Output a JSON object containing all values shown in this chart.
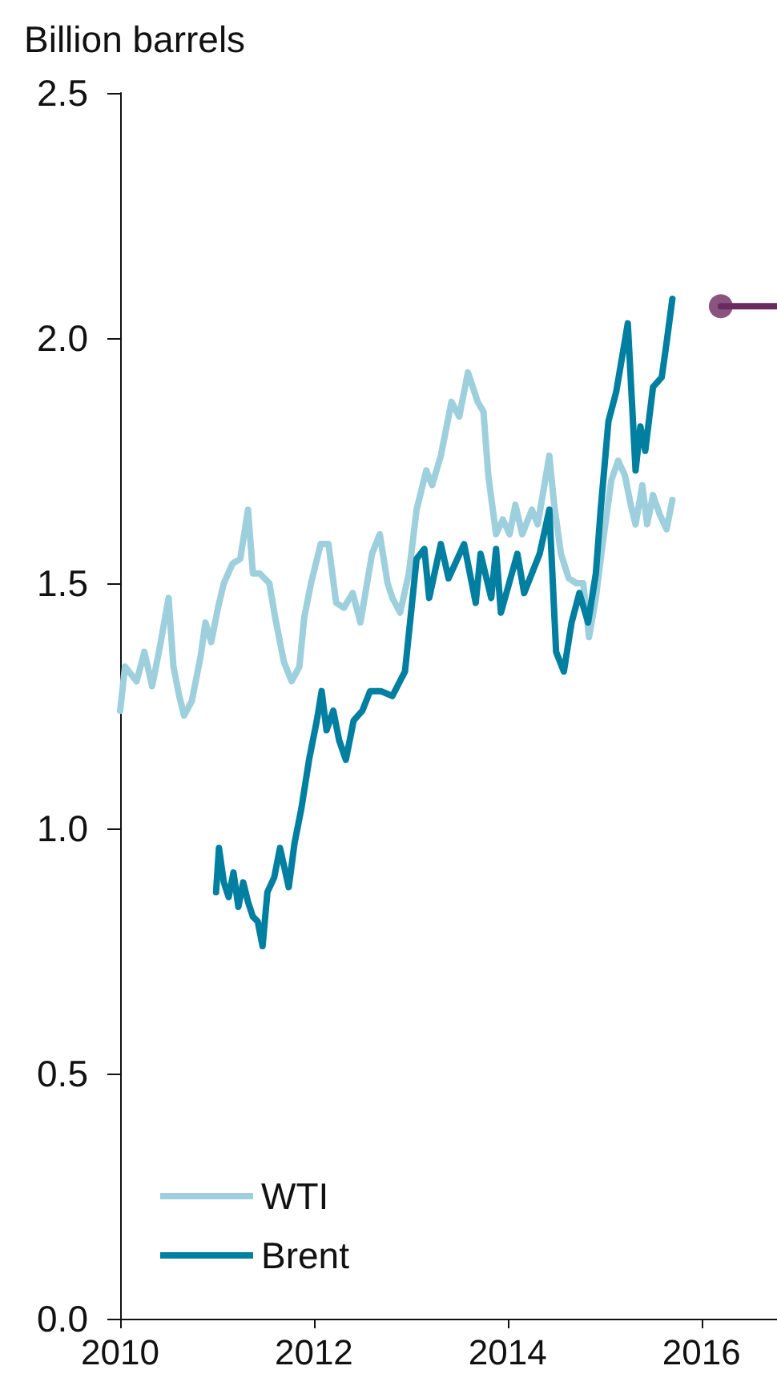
{
  "chart_data": {
    "type": "line",
    "ylabel": "Billion barrels",
    "xlim": [
      2010,
      2016.78
    ],
    "xticks": [
      2010,
      2012,
      2014,
      2016
    ],
    "ylim": [
      0,
      2.5
    ],
    "yticks": [
      {
        "value": 0,
        "label": "0.0"
      },
      0.5,
      {
        "value": 1,
        "label": "1.0"
      },
      1.5,
      {
        "value": 2,
        "label": "2.0"
      },
      2.5
    ],
    "grid": false,
    "legend": "bottom left",
    "marker": "none",
    "line_style": "solid",
    "series": [
      {
        "name": "WTI",
        "color": "#9dcfdd",
        "x": [
          2010.0,
          2010.05,
          2010.17,
          2010.25,
          2010.33,
          2010.41,
          2010.5,
          2010.55,
          2010.61,
          2010.66,
          2010.74,
          2010.83,
          2010.88,
          2010.94,
          2011.01,
          2011.07,
          2011.16,
          2011.24,
          2011.32,
          2011.37,
          2011.44,
          2011.54,
          2011.6,
          2011.69,
          2011.77,
          2011.85,
          2011.9,
          2011.97,
          2012.07,
          2012.15,
          2012.23,
          2012.31,
          2012.4,
          2012.48,
          2012.6,
          2012.68,
          2012.76,
          2012.81,
          2012.89,
          2012.98,
          2013.06,
          2013.16,
          2013.22,
          2013.31,
          2013.42,
          2013.5,
          2013.59,
          2013.69,
          2013.75,
          2013.8,
          2013.88,
          2013.95,
          2014.02,
          2014.08,
          2014.15,
          2014.25,
          2014.31,
          2014.43,
          2014.48,
          2014.55,
          2014.63,
          2014.71,
          2014.78,
          2014.84,
          2014.91,
          2014.98,
          2015.07,
          2015.14,
          2015.21,
          2015.27,
          2015.32,
          2015.39,
          2015.44,
          2015.5,
          2015.57,
          2015.64,
          2015.7
        ],
        "values": [
          1.24,
          1.33,
          1.3,
          1.36,
          1.29,
          1.37,
          1.47,
          1.33,
          1.27,
          1.23,
          1.26,
          1.35,
          1.42,
          1.38,
          1.45,
          1.5,
          1.54,
          1.55,
          1.65,
          1.52,
          1.52,
          1.5,
          1.43,
          1.34,
          1.3,
          1.33,
          1.43,
          1.5,
          1.58,
          1.58,
          1.46,
          1.45,
          1.48,
          1.42,
          1.56,
          1.6,
          1.5,
          1.47,
          1.44,
          1.52,
          1.65,
          1.73,
          1.7,
          1.76,
          1.87,
          1.84,
          1.93,
          1.87,
          1.85,
          1.72,
          1.6,
          1.63,
          1.6,
          1.66,
          1.6,
          1.65,
          1.62,
          1.76,
          1.66,
          1.56,
          1.51,
          1.5,
          1.5,
          1.39,
          1.47,
          1.58,
          1.71,
          1.75,
          1.72,
          1.66,
          1.62,
          1.7,
          1.62,
          1.68,
          1.64,
          1.61,
          1.67
        ]
      },
      {
        "name": "Brent",
        "color": "#007fa0",
        "x": [
          2010.99,
          2011.02,
          2011.07,
          2011.12,
          2011.17,
          2011.22,
          2011.27,
          2011.32,
          2011.37,
          2011.42,
          2011.47,
          2011.52,
          2011.59,
          2011.65,
          2011.74,
          2011.8,
          2011.87,
          2011.95,
          2012.03,
          2012.08,
          2012.13,
          2012.2,
          2012.26,
          2012.33,
          2012.41,
          2012.5,
          2012.58,
          2012.69,
          2012.81,
          2012.94,
          2013.06,
          2013.14,
          2013.19,
          2013.31,
          2013.39,
          2013.55,
          2013.67,
          2013.72,
          2013.83,
          2013.88,
          2013.93,
          2014.1,
          2014.17,
          2014.33,
          2014.43,
          2014.5,
          2014.58,
          2014.66,
          2014.74,
          2014.83,
          2014.91,
          2014.96,
          2015.04,
          2015.12,
          2015.24,
          2015.32,
          2015.37,
          2015.42,
          2015.5,
          2015.59,
          2015.64,
          2015.7
        ],
        "values": [
          0.87,
          0.96,
          0.89,
          0.86,
          0.91,
          0.84,
          0.89,
          0.85,
          0.82,
          0.81,
          0.76,
          0.87,
          0.9,
          0.96,
          0.88,
          0.97,
          1.04,
          1.14,
          1.22,
          1.28,
          1.2,
          1.24,
          1.18,
          1.14,
          1.22,
          1.24,
          1.28,
          1.28,
          1.27,
          1.32,
          1.55,
          1.57,
          1.47,
          1.58,
          1.51,
          1.58,
          1.46,
          1.56,
          1.47,
          1.57,
          1.44,
          1.56,
          1.48,
          1.56,
          1.65,
          1.36,
          1.32,
          1.42,
          1.48,
          1.42,
          1.52,
          1.65,
          1.83,
          1.89,
          2.03,
          1.73,
          1.82,
          1.77,
          1.9,
          1.92,
          1.99,
          2.08
        ]
      },
      {
        "color": "#6b2a5f",
        "x": [
          2016.2,
          2016.78
        ],
        "values": [
          2.065,
          2.065
        ]
      },
      {
        "type": "scatter",
        "marker": "circle",
        "color": "#6b2a5f",
        "x": [
          2016.2
        ],
        "values": [
          2.065
        ]
      }
    ]
  }
}
